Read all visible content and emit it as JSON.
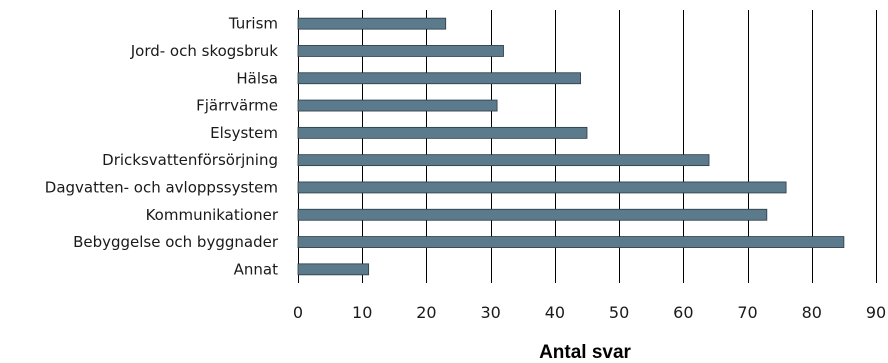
{
  "chart_data": {
    "type": "bar",
    "orientation": "horizontal",
    "categories": [
      "Turism",
      "Jord- och skogsbruk",
      "Hälsa",
      "Fjärrvärme",
      "Elsystem",
      "Dricksvattenförsörjning",
      "Dagvatten- och avloppssystem",
      "Kommunikationer",
      "Bebyggelse och byggnader",
      "Annat"
    ],
    "values": [
      23,
      32,
      44,
      31,
      45,
      64,
      76,
      73,
      85,
      11
    ],
    "xlabel": "Antal svar",
    "xlim": [
      0,
      90
    ],
    "xticks": [
      0,
      10,
      20,
      30,
      40,
      50,
      60,
      70,
      80,
      90
    ],
    "grid": "vertical",
    "bar_color": "#5b7a8c"
  }
}
